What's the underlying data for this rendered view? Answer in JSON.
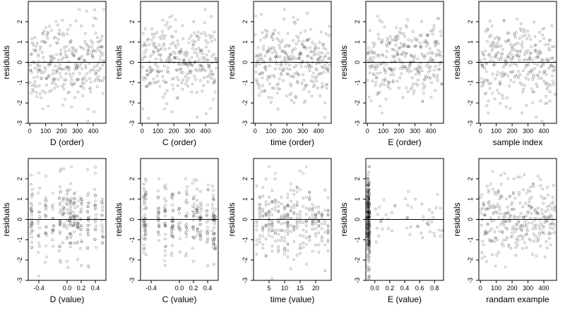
{
  "figure": {
    "background": "#ffffff",
    "point_color": "#000000",
    "grid": false
  },
  "chart_data": [
    {
      "type": "scatter",
      "xlabel": "D (order)",
      "ylabel": "residuals",
      "xlim": [
        -10,
        480
      ],
      "ylim": [
        -3,
        3
      ],
      "xticks": [
        0,
        100,
        200,
        300,
        400
      ],
      "xtick_labels": [
        "0",
        "100",
        "200",
        "300",
        "400"
      ],
      "yticks": [
        -3,
        -2,
        -1,
        0,
        1,
        2
      ],
      "ytick_labels": [
        "-3",
        "-2",
        "-1",
        "0",
        "1",
        "2"
      ],
      "hline": 0,
      "points": []
    },
    {
      "type": "scatter",
      "xlabel": "C (order)",
      "ylabel": "residuals",
      "xlim": [
        -10,
        480
      ],
      "ylim": [
        -3,
        3
      ],
      "xticks": [
        0,
        100,
        200,
        300,
        400
      ],
      "xtick_labels": [
        "0",
        "100",
        "200",
        "300",
        "400"
      ],
      "yticks": [
        -3,
        -2,
        -1,
        0,
        1,
        2
      ],
      "ytick_labels": [
        "-3",
        "-2",
        "-1",
        "0",
        "1",
        "2"
      ],
      "hline": 0,
      "points": []
    },
    {
      "type": "scatter",
      "xlabel": "time (order)",
      "ylabel": "residuals",
      "xlim": [
        -10,
        480
      ],
      "ylim": [
        -3,
        3
      ],
      "xticks": [
        0,
        100,
        200,
        300,
        400
      ],
      "xtick_labels": [
        "0",
        "100",
        "200",
        "300",
        "400"
      ],
      "yticks": [
        -3,
        -2,
        -1,
        0,
        1,
        2
      ],
      "ytick_labels": [
        "-3",
        "-2",
        "-1",
        "0",
        "1",
        "2"
      ],
      "hline": 0,
      "points": []
    },
    {
      "type": "scatter",
      "xlabel": "E (order)",
      "ylabel": "residuals",
      "xlim": [
        -10,
        480
      ],
      "ylim": [
        -3,
        3
      ],
      "xticks": [
        0,
        100,
        200,
        300,
        400
      ],
      "xtick_labels": [
        "0",
        "100",
        "200",
        "300",
        "400"
      ],
      "yticks": [
        -3,
        -2,
        -1,
        0,
        1,
        2
      ],
      "ytick_labels": [
        "-3",
        "-2",
        "-1",
        "0",
        "1",
        "2"
      ],
      "hline": 0,
      "points": []
    },
    {
      "type": "scatter",
      "xlabel": "sample index",
      "ylabel": "residuals",
      "xlim": [
        -10,
        480
      ],
      "ylim": [
        -3,
        3
      ],
      "xticks": [
        0,
        100,
        200,
        300,
        400
      ],
      "xtick_labels": [
        "0",
        "100",
        "200",
        "300",
        "400"
      ],
      "yticks": [
        -3,
        -2,
        -1,
        0,
        1,
        2
      ],
      "ytick_labels": [
        "-3",
        "-2",
        "-1",
        "0",
        "1",
        "2"
      ],
      "hline": 0,
      "points": []
    },
    {
      "type": "scatter",
      "xlabel": "D (value)",
      "ylabel": "residuals",
      "xlim": [
        -0.55,
        0.55
      ],
      "ylim": [
        -3,
        3
      ],
      "xticks": [
        -0.4,
        0.0,
        0.2,
        0.4
      ],
      "xtick_labels": [
        "-0.4",
        "0.0",
        "0.2",
        "0.4"
      ],
      "yticks": [
        -3,
        -2,
        -1,
        0,
        1,
        2
      ],
      "ytick_labels": [
        "-3",
        "-2",
        "-1",
        "0",
        "1",
        "2"
      ],
      "hline": 0,
      "points": []
    },
    {
      "type": "scatter",
      "xlabel": "C (value)",
      "ylabel": "residuals",
      "xlim": [
        -0.55,
        0.55
      ],
      "ylim": [
        -3,
        3
      ],
      "xticks": [
        -0.4,
        0.0,
        0.2,
        0.4
      ],
      "xtick_labels": [
        "-0.4",
        "0.0",
        "0.2",
        "0.4"
      ],
      "yticks": [
        -3,
        -2,
        -1,
        0,
        1,
        2
      ],
      "ytick_labels": [
        "-3",
        "-2",
        "-1",
        "0",
        "1",
        "2"
      ],
      "hline": 0,
      "points": []
    },
    {
      "type": "scatter",
      "xlabel": "time (value)",
      "ylabel": "residuals",
      "xlim": [
        0,
        25
      ],
      "ylim": [
        -3,
        3
      ],
      "xticks": [
        5,
        10,
        15,
        20
      ],
      "xtick_labels": [
        "5",
        "10",
        "15",
        "20"
      ],
      "yticks": [
        -3,
        -2,
        -1,
        0,
        1,
        2
      ],
      "ytick_labels": [
        "-3",
        "-2",
        "-1",
        "0",
        "1",
        "2"
      ],
      "hline": 0,
      "points": []
    },
    {
      "type": "scatter",
      "xlabel": "E (value)",
      "ylabel": "residuals",
      "xlim": [
        -0.12,
        0.92
      ],
      "ylim": [
        -3,
        3
      ],
      "xticks": [
        0.0,
        0.2,
        0.4,
        0.6,
        0.8
      ],
      "xtick_labels": [
        "0.0",
        "0.2",
        "0.4",
        "0.6",
        "0.8"
      ],
      "yticks": [
        -3,
        -2,
        -1,
        0,
        1,
        2
      ],
      "ytick_labels": [
        "-3",
        "-2",
        "-1",
        "0",
        "1",
        "2"
      ],
      "hline": 0,
      "points": []
    },
    {
      "type": "scatter",
      "xlabel": "randam example",
      "ylabel": "residuals",
      "xlim": [
        -10,
        480
      ],
      "ylim": [
        -3,
        3
      ],
      "xticks": [
        0,
        100,
        200,
        300,
        400
      ],
      "xtick_labels": [
        "0",
        "100",
        "200",
        "300",
        "400"
      ],
      "yticks": [
        -3,
        -2,
        -1,
        0,
        1,
        2
      ],
      "ytick_labels": [
        "-3",
        "-2",
        "-1",
        "0",
        "1",
        "2"
      ],
      "hline": 0,
      "points": []
    }
  ]
}
